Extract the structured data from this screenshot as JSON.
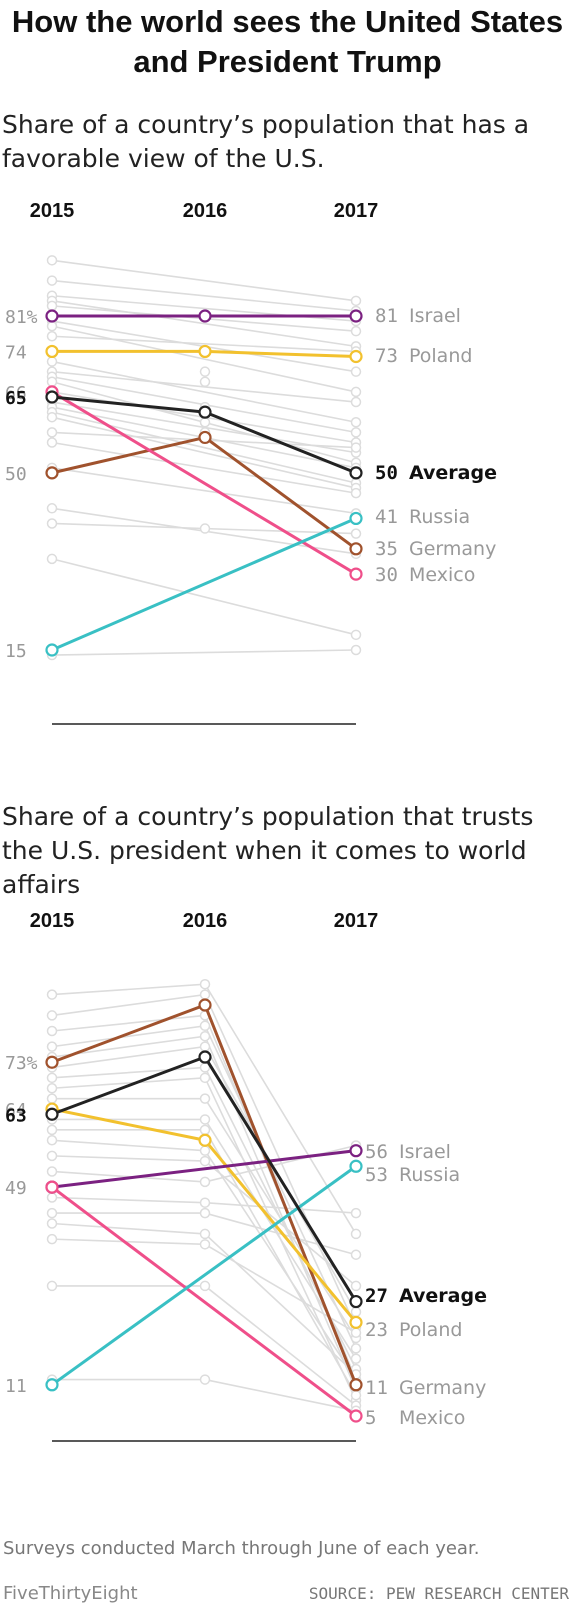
{
  "headline": "How the world sees the United States and President Trump",
  "chart_data": [
    {
      "type": "line",
      "title": "Share of a country’s population that has a favorable view of the U.S.",
      "x": [
        "2015",
        "2016",
        "2017"
      ],
      "ylim": [
        15,
        81
      ],
      "highlighted_series": [
        {
          "name": "Israel",
          "values": [
            81,
            81,
            81
          ],
          "color": "#7b2181",
          "start_label": "81%"
        },
        {
          "name": "Poland",
          "values": [
            74,
            74,
            73
          ],
          "color": "#f2c12e",
          "start_label": "74"
        },
        {
          "name": "Germany",
          "values": [
            50,
            57,
            35
          ],
          "color": "#a0522d",
          "start_label": "50"
        },
        {
          "name": "Mexico",
          "values": [
            66,
            null,
            30
          ],
          "color": "#ef4f8a",
          "start_label": "66"
        },
        {
          "name": "Russia",
          "values": [
            15,
            null,
            41
          ],
          "color": "#39c0c4",
          "start_label": "15"
        },
        {
          "name": "Average",
          "values": [
            65,
            62,
            50
          ],
          "color": "#222222",
          "start_label": "65",
          "bold": true
        }
      ],
      "end_labels": [
        {
          "value": "81",
          "name": "Israel"
        },
        {
          "value": "73",
          "name": "Poland"
        },
        {
          "value": "50",
          "name": "Average",
          "bold": true
        },
        {
          "value": "41",
          "name": "Russia"
        },
        {
          "value": "35",
          "name": "Germany"
        },
        {
          "value": "30",
          "name": "Mexico"
        }
      ],
      "background_series": [
        [
          92,
          84
        ],
        [
          88,
          82
        ],
        [
          85,
          80
        ],
        [
          84,
          75
        ],
        [
          83,
          78
        ],
        [
          80,
          70
        ],
        [
          79,
          66
        ],
        [
          77,
          74
        ],
        [
          72,
          60
        ],
        [
          70,
          64
        ],
        [
          69,
          58
        ],
        [
          68,
          52
        ],
        [
          66,
          56
        ],
        [
          64,
          54
        ],
        [
          63,
          51
        ],
        [
          62,
          48
        ],
        [
          61,
          47
        ],
        [
          58,
          55
        ],
        [
          56,
          46
        ],
        [
          51,
          42
        ],
        [
          43,
          34
        ],
        [
          40,
          38
        ],
        [
          33,
          18
        ],
        [
          14,
          15
        ]
      ],
      "background_2016_points": [
        68,
        63,
        60,
        70,
        58,
        39
      ]
    },
    {
      "type": "line",
      "title": "Share of a country’s population that trusts the U.S. president when it comes to world affairs",
      "x": [
        "2015",
        "2016",
        "2017"
      ],
      "ylim": [
        5,
        84
      ],
      "highlighted_series": [
        {
          "name": "Germany",
          "values": [
            73,
            84,
            11
          ],
          "color": "#a0522d",
          "start_label": "73%"
        },
        {
          "name": "Average",
          "values": [
            63,
            74,
            27
          ],
          "color": "#222222",
          "start_label": "63",
          "bold": true
        },
        {
          "name": "Poland",
          "values": [
            64,
            58,
            23
          ],
          "color": "#f2c12e",
          "start_label": "64"
        },
        {
          "name": "Israel",
          "values": [
            49,
            null,
            56
          ],
          "color": "#7b2181",
          "start_label": "49"
        },
        {
          "name": "Mexico",
          "values": [
            49,
            null,
            5
          ],
          "color": "#ef4f8a",
          "start_label": ""
        },
        {
          "name": "Russia",
          "values": [
            11,
            null,
            53
          ],
          "color": "#39c0c4",
          "start_label": "11"
        }
      ],
      "end_labels": [
        {
          "value": "56",
          "name": "Israel"
        },
        {
          "value": "53",
          "name": "Russia"
        },
        {
          "value": "27",
          "name": "Average",
          "bold": true
        },
        {
          "value": "23",
          "name": "Poland"
        },
        {
          "value": "11",
          "name": "Germany"
        },
        {
          "value": "5",
          "name": "Mexico"
        }
      ],
      "background_series": [
        [
          86,
          88,
          40
        ],
        [
          82,
          86,
          22
        ],
        [
          79,
          82,
          12
        ],
        [
          76,
          80,
          18
        ],
        [
          74,
          78,
          10
        ],
        [
          72,
          76,
          25
        ],
        [
          70,
          72,
          14
        ],
        [
          68,
          70,
          8
        ],
        [
          66,
          66,
          20
        ],
        [
          62,
          62,
          16
        ],
        [
          60,
          60,
          9
        ],
        [
          58,
          56,
          12
        ],
        [
          55,
          54,
          30
        ],
        [
          52,
          50,
          57
        ],
        [
          47,
          46,
          44
        ],
        [
          44,
          44,
          36
        ],
        [
          42,
          40,
          13
        ],
        [
          39,
          38,
          21
        ],
        [
          30,
          30,
          7
        ],
        [
          12,
          12,
          6
        ]
      ]
    }
  ],
  "footnote": "Surveys conducted March through June of each year.",
  "brand": "FiveThirtyEight",
  "source": "SOURCE: PEW RESEARCH CENTER"
}
